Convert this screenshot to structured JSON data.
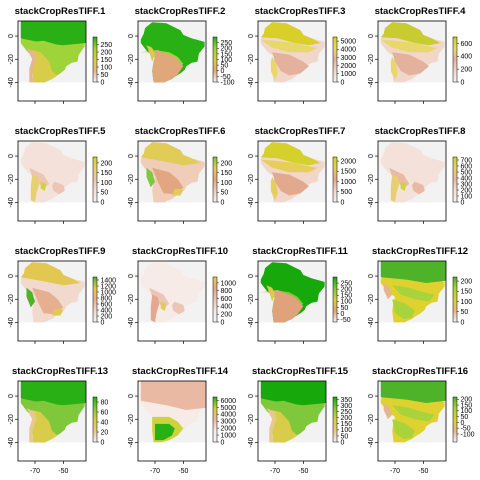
{
  "chart_data": {
    "type": "heatmap",
    "layout": {
      "rows": 4,
      "cols": 4
    },
    "shared_axes": {
      "y_ticks": [
        0,
        -20,
        -40
      ],
      "x_ticks": [
        -70,
        -50
      ],
      "x_lim": [
        -82,
        -34
      ],
      "y_lim": [
        -56,
        13
      ]
    },
    "panels": [
      {
        "title": "stackCropResTIFF.1",
        "scale": [
          0,
          300
        ],
        "legend_ticks": [
          250,
          200,
          150,
          100,
          50,
          0
        ],
        "pattern": "northern-green-warm",
        "colors": [
          "#f2f2f2",
          "#e8b68e",
          "#d9cc48",
          "#9ed33a",
          "#28b014"
        ]
      },
      {
        "title": "stackCropResTIFF.2",
        "scale": [
          -100,
          300
        ],
        "legend_ticks": [
          250,
          200,
          150,
          100,
          50,
          0,
          -50,
          -100
        ],
        "pattern": "green-with-dry-south",
        "colors": [
          "#f2f2f2",
          "#e0a87a",
          "#d9cc48",
          "#9ed33a",
          "#28b014"
        ]
      },
      {
        "title": "stackCropResTIFF.3",
        "scale": [
          0,
          5500
        ],
        "legend_ticks": [
          5000,
          4000,
          3000,
          2000,
          1000,
          0
        ],
        "pattern": "pink-yellow-upper",
        "colors": [
          "#f2f2f2",
          "#f1d6ca",
          "#e4b29c",
          "#e8d86c",
          "#d8d028"
        ]
      },
      {
        "title": "stackCropResTIFF.4",
        "scale": [
          0,
          700
        ],
        "legend_ticks": [
          600,
          400,
          200,
          0
        ],
        "pattern": "pink-yellow-upper",
        "colors": [
          "#f2f2f2",
          "#f1d6ca",
          "#e4b29c",
          "#e8d86c",
          "#c8cc30"
        ]
      },
      {
        "title": "stackCropResTIFF.5",
        "scale": [
          0,
          230
        ],
        "legend_ticks": [
          200,
          150,
          100,
          50,
          0
        ],
        "pattern": "pink-light-andes",
        "colors": [
          "#f2f2f2",
          "#f4e2da",
          "#eec4b2",
          "#e6d070",
          "#cfd33b"
        ]
      },
      {
        "title": "stackCropResTIFF.6",
        "scale": [
          0,
          230
        ],
        "legend_ticks": [
          200,
          150,
          100,
          50,
          0
        ],
        "pattern": "tan-andes-green",
        "colors": [
          "#f2f2f2",
          "#efcdb9",
          "#e2a781",
          "#e0cc56",
          "#7fc73b"
        ]
      },
      {
        "title": "stackCropResTIFF.7",
        "scale": [
          0,
          2200
        ],
        "legend_ticks": [
          2000,
          1500,
          1000,
          500,
          0
        ],
        "pattern": "pink-yellow-upper",
        "colors": [
          "#f2f2f2",
          "#f1d6ca",
          "#e2a98f",
          "#e5cf5a",
          "#d6d02c"
        ]
      },
      {
        "title": "stackCropResTIFF.8",
        "scale": [
          0,
          750
        ],
        "legend_ticks": [
          700,
          600,
          500,
          400,
          300,
          200,
          100,
          0
        ],
        "pattern": "pink-light-andes",
        "colors": [
          "#f2f2f2",
          "#f4e2da",
          "#eab9a4",
          "#e6d070",
          "#cfd33b"
        ]
      },
      {
        "title": "stackCropResTIFF.9",
        "scale": [
          0,
          1500
        ],
        "legend_ticks": [
          1400,
          1200,
          1000,
          800,
          600,
          400,
          200,
          0
        ],
        "pattern": "tan-andes-green",
        "colors": [
          "#f2f2f2",
          "#f2d9cd",
          "#e6b090",
          "#e2c850",
          "#4fb32a"
        ]
      },
      {
        "title": "stackCropResTIFF.10",
        "scale": [
          0,
          1150
        ],
        "legend_ticks": [
          1000,
          800,
          600,
          400,
          200,
          0
        ],
        "pattern": "pink-light-andes",
        "colors": [
          "#f2f2f2",
          "#f6ebe6",
          "#ecc6b4",
          "#e3a88e",
          "#e0cc56"
        ]
      },
      {
        "title": "stackCropResTIFF.11",
        "scale": [
          -70,
          300
        ],
        "legend_ticks": [
          250,
          200,
          150,
          100,
          50,
          0,
          -50
        ],
        "pattern": "green-with-dry-south",
        "colors": [
          "#f2f2f2",
          "#e0a27a",
          "#d9cc48",
          "#7fc73b",
          "#17a80c"
        ]
      },
      {
        "title": "stackCropResTIFF.12",
        "scale": [
          0,
          220
        ],
        "legend_ticks": [
          200,
          150,
          100,
          50,
          0
        ],
        "pattern": "yellow-green-full",
        "colors": [
          "#f2f2f2",
          "#e6b58f",
          "#dfd12f",
          "#a8d33a",
          "#4fb32a"
        ]
      },
      {
        "title": "stackCropResTIFF.13",
        "scale": [
          0,
          90
        ],
        "legend_ticks": [
          80,
          60,
          40,
          20,
          0
        ],
        "pattern": "northern-green-warm",
        "colors": [
          "#f2f2f2",
          "#e6c98c",
          "#d9cc48",
          "#7fc73b",
          "#28b014"
        ]
      },
      {
        "title": "stackCropResTIFF.14",
        "scale": [
          0,
          6500
        ],
        "legend_ticks": [
          6000,
          5000,
          4000,
          3000,
          2000,
          1000,
          0
        ],
        "pattern": "pink-green-south",
        "colors": [
          "#f2f2f2",
          "#f6ebe6",
          "#eab9a4",
          "#cfd33b",
          "#28b014"
        ]
      },
      {
        "title": "stackCropResTIFF.15",
        "scale": [
          0,
          370
        ],
        "legend_ticks": [
          350,
          300,
          250,
          200,
          150,
          100,
          50,
          0
        ],
        "pattern": "northern-green-warm",
        "colors": [
          "#f2f2f2",
          "#e6c98c",
          "#d9cc48",
          "#7fc73b",
          "#17a80c"
        ]
      },
      {
        "title": "stackCropResTIFF.16",
        "scale": [
          -170,
          220
        ],
        "legend_ticks": [
          200,
          150,
          100,
          50,
          0,
          -50,
          -100
        ],
        "pattern": "yellow-green-full",
        "colors": [
          "#f2f2f2",
          "#e6b58f",
          "#dfd12f",
          "#a8d33a",
          "#4fb32a"
        ]
      }
    ]
  }
}
